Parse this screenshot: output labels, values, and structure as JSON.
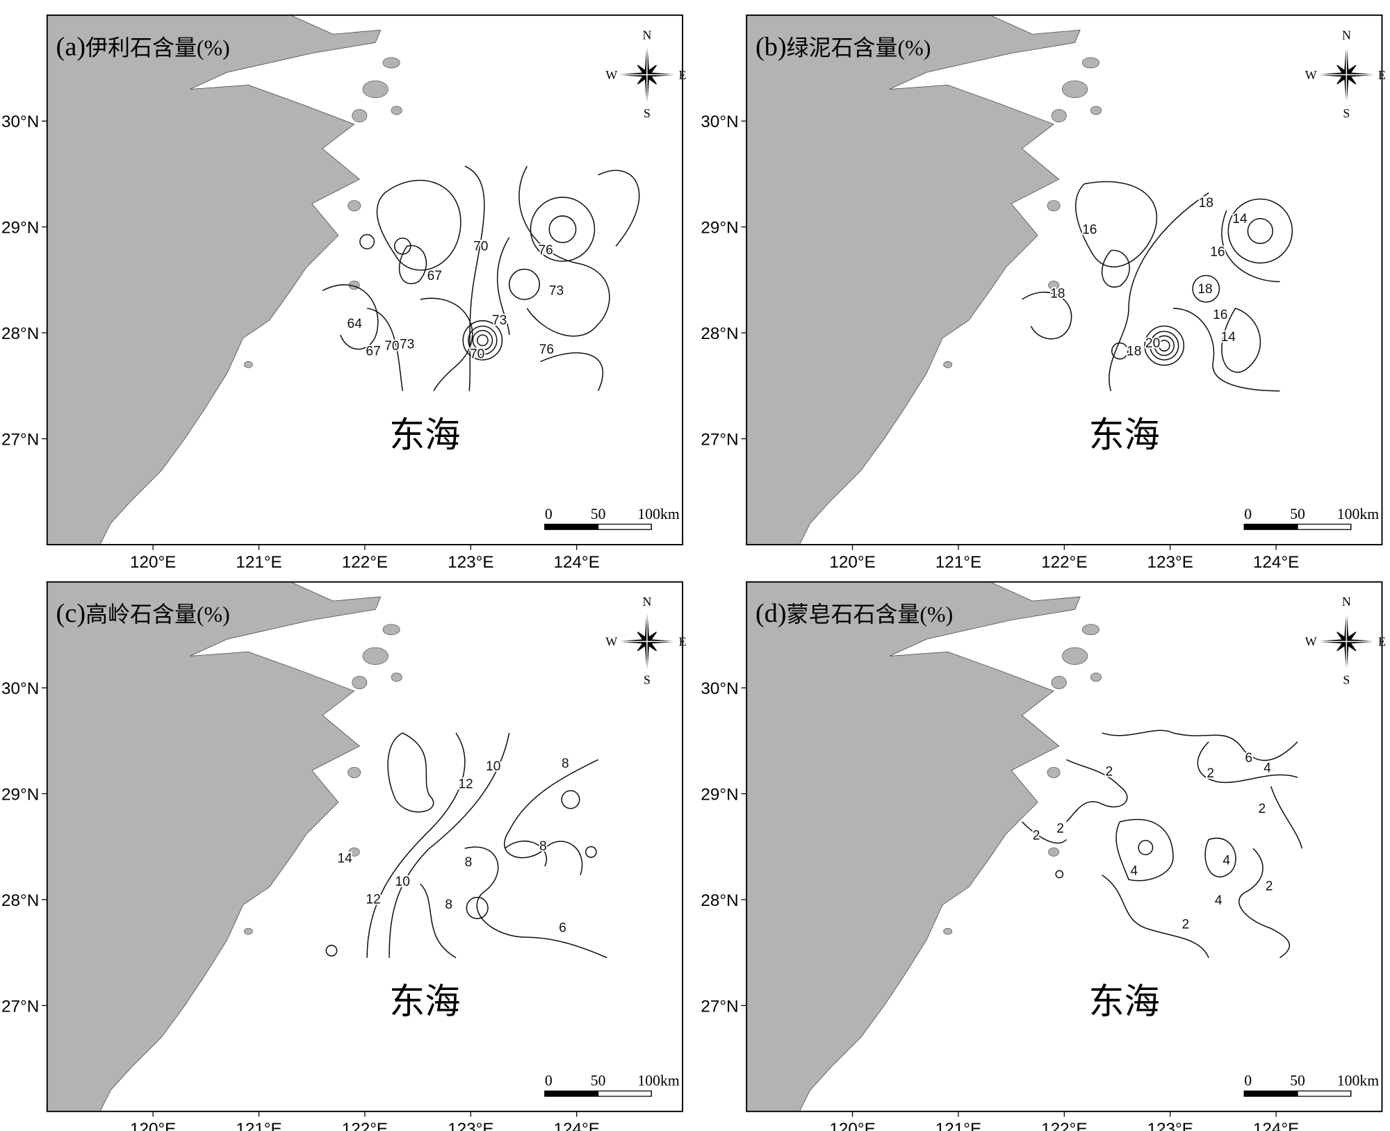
{
  "panels": [
    {
      "label": "(a)",
      "title": "伊利石含量(%)",
      "sea_label": "东海",
      "contour_labels": [
        76,
        70,
        67,
        73,
        73,
        64,
        67,
        70,
        73,
        70,
        76
      ]
    },
    {
      "label": "(b)",
      "title": "绿泥石含量(%)",
      "sea_label": "东海",
      "contour_labels": [
        18,
        14,
        16,
        16,
        18,
        18,
        16,
        14,
        18,
        20
      ]
    },
    {
      "label": "(c)",
      "title": "高岭石含量(%)",
      "sea_label": "东海",
      "contour_labels": [
        8,
        10,
        12,
        8,
        14,
        8,
        10,
        12,
        8,
        6
      ]
    },
    {
      "label": "(d)",
      "title": "蒙皂石石含量(%)",
      "sea_label": "东海",
      "contour_labels": [
        6,
        2,
        4,
        2,
        2,
        2,
        2,
        4,
        4,
        2,
        4,
        2
      ]
    }
  ],
  "compass": {
    "n": "N",
    "s": "S",
    "w": "W",
    "e": "E"
  },
  "scale_bar": {
    "ticks": [
      0,
      50,
      {
        "value": 100,
        "label": "100km"
      }
    ]
  },
  "axes": {
    "xlim": [
      119,
      125
    ],
    "ylim": [
      26,
      31
    ],
    "xticks": [
      {
        "value": 120,
        "label": "120°E"
      },
      {
        "value": 121,
        "label": "121°E"
      },
      {
        "value": 122,
        "label": "122°E"
      },
      {
        "value": 123,
        "label": "123°E"
      },
      {
        "value": 124,
        "label": "124°E"
      }
    ],
    "yticks": [
      {
        "value": 27,
        "label": "27°N"
      },
      {
        "value": 28,
        "label": "28°N"
      },
      {
        "value": 29,
        "label": "29°N"
      },
      {
        "value": 30,
        "label": "30°N"
      }
    ]
  }
}
